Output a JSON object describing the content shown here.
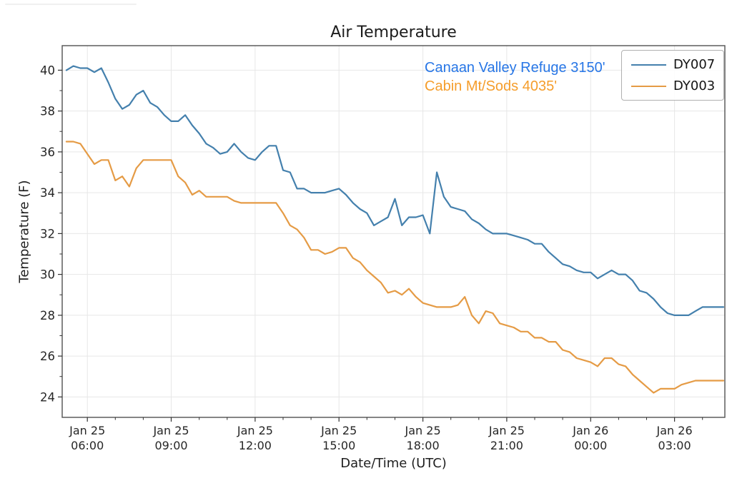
{
  "figure": {
    "title": "Air Temperature",
    "xlabel": "Date/Time (UTC)",
    "ylabel": "Temperature (F)",
    "background_color": "#ffffff"
  },
  "annotations": [
    {
      "text": "Canaan Valley Refuge 3150'",
      "color": "#2776e6"
    },
    {
      "text": "Cabin Mt/Sods 4035'",
      "color": "#f59d2b"
    }
  ],
  "legend": {
    "position": "upper right",
    "entries": [
      {
        "label": "DY007",
        "color": "#4480ad"
      },
      {
        "label": "DY003",
        "color": "#e59b45"
      }
    ]
  },
  "chart_data": {
    "type": "line",
    "title": "Air Temperature",
    "xlabel": "Date/Time (UTC)",
    "ylabel": "Temperature (F)",
    "grid": true,
    "grid_color": "#e7e7e7",
    "frame_color": "#515151",
    "text_color": "#262626",
    "legend_position": "upper right",
    "x_hours_note": "hours after Jan 25 00:00 UTC; values >= 24 are Jan 26",
    "xlim_hours": [
      5.1,
      28.8
    ],
    "ylim": [
      23.0,
      41.2
    ],
    "yticks": [
      24,
      26,
      28,
      30,
      32,
      34,
      36,
      38,
      40
    ],
    "yticks_minor": [
      25,
      27,
      29,
      31,
      33,
      35,
      37,
      39
    ],
    "xticks": [
      {
        "hour": 6,
        "label1": "Jan 25",
        "label2": "06:00"
      },
      {
        "hour": 9,
        "label1": "Jan 25",
        "label2": "09:00"
      },
      {
        "hour": 12,
        "label1": "Jan 25",
        "label2": "12:00"
      },
      {
        "hour": 15,
        "label1": "Jan 25",
        "label2": "15:00"
      },
      {
        "hour": 18,
        "label1": "Jan 25",
        "label2": "18:00"
      },
      {
        "hour": 21,
        "label1": "Jan 25",
        "label2": "21:00"
      },
      {
        "hour": 24,
        "label1": "Jan 26",
        "label2": "00:00"
      },
      {
        "hour": 27,
        "label1": "Jan 26",
        "label2": "03:00"
      }
    ],
    "xticks_minor_step_hours": 1,
    "x_hours_utc": [
      5.25,
      5.5,
      5.75,
      6,
      6.25,
      6.5,
      6.75,
      7,
      7.25,
      7.5,
      7.75,
      8,
      8.25,
      8.5,
      8.75,
      9,
      9.25,
      9.5,
      9.75,
      10,
      10.25,
      10.5,
      10.75,
      11,
      11.25,
      11.5,
      11.75,
      12,
      12.25,
      12.5,
      12.75,
      13,
      13.25,
      13.5,
      13.75,
      14,
      14.25,
      14.5,
      14.75,
      15,
      15.25,
      15.5,
      15.75,
      16,
      16.25,
      16.5,
      16.75,
      17,
      17.25,
      17.5,
      17.75,
      18,
      18.25,
      18.5,
      18.75,
      19,
      19.25,
      19.5,
      19.75,
      20,
      20.25,
      20.5,
      20.75,
      21,
      21.25,
      21.5,
      21.75,
      22,
      22.25,
      22.5,
      22.75,
      23,
      23.25,
      23.5,
      23.75,
      24,
      24.25,
      24.5,
      24.75,
      25,
      25.25,
      25.5,
      25.75,
      26,
      26.25,
      26.5,
      26.75,
      27,
      27.25,
      27.5,
      27.75,
      28,
      28.25,
      28.5,
      28.75
    ],
    "series": [
      {
        "name": "DY007",
        "station": "Canaan Valley Refuge 3150'",
        "color": "#4480ad",
        "values": [
          40.0,
          40.2,
          40.1,
          40.1,
          39.9,
          40.1,
          39.4,
          38.6,
          38.1,
          38.3,
          38.8,
          39.0,
          38.4,
          38.2,
          37.8,
          37.5,
          37.5,
          37.8,
          37.3,
          36.9,
          36.4,
          36.2,
          35.9,
          36.0,
          36.4,
          36.0,
          35.7,
          35.6,
          36.0,
          36.3,
          36.3,
          35.1,
          35.0,
          34.2,
          34.2,
          34.0,
          34.0,
          34.0,
          34.1,
          34.2,
          33.9,
          33.5,
          33.2,
          33.0,
          32.4,
          32.6,
          32.8,
          33.7,
          32.4,
          32.8,
          32.8,
          32.9,
          32.0,
          35.0,
          33.8,
          33.3,
          33.2,
          33.1,
          32.7,
          32.5,
          32.2,
          32.0,
          32.0,
          32.0,
          31.9,
          31.8,
          31.7,
          31.5,
          31.5,
          31.1,
          30.8,
          30.5,
          30.4,
          30.2,
          30.1,
          30.1,
          29.8,
          30.0,
          30.2,
          30.0,
          30.0,
          29.7,
          29.2,
          29.1,
          28.8,
          28.4,
          28.1,
          28.0,
          28.0,
          28.0,
          28.2,
          28.4,
          28.4,
          28.4,
          28.4
        ]
      },
      {
        "name": "DY003",
        "station": "Cabin Mt/Sods 4035'",
        "color": "#e59b45",
        "values": [
          36.5,
          36.5,
          36.4,
          35.9,
          35.4,
          35.6,
          35.6,
          34.6,
          34.8,
          34.3,
          35.2,
          35.6,
          35.6,
          35.6,
          35.6,
          35.6,
          34.8,
          34.5,
          33.9,
          34.1,
          33.8,
          33.8,
          33.8,
          33.8,
          33.6,
          33.5,
          33.5,
          33.5,
          33.5,
          33.5,
          33.5,
          33.0,
          32.4,
          32.2,
          31.8,
          31.2,
          31.2,
          31.0,
          31.1,
          31.3,
          31.3,
          30.8,
          30.6,
          30.2,
          29.9,
          29.6,
          29.1,
          29.2,
          29.0,
          29.3,
          28.9,
          28.6,
          28.5,
          28.4,
          28.4,
          28.4,
          28.5,
          28.9,
          28.0,
          27.6,
          28.2,
          28.1,
          27.6,
          27.5,
          27.4,
          27.2,
          27.2,
          26.9,
          26.9,
          26.7,
          26.7,
          26.3,
          26.2,
          25.9,
          25.8,
          25.7,
          25.5,
          25.9,
          25.9,
          25.6,
          25.5,
          25.1,
          24.8,
          24.5,
          24.2,
          24.4,
          24.4,
          24.4,
          24.6,
          24.7,
          24.8,
          24.8,
          24.8,
          24.8,
          24.8
        ]
      }
    ]
  }
}
